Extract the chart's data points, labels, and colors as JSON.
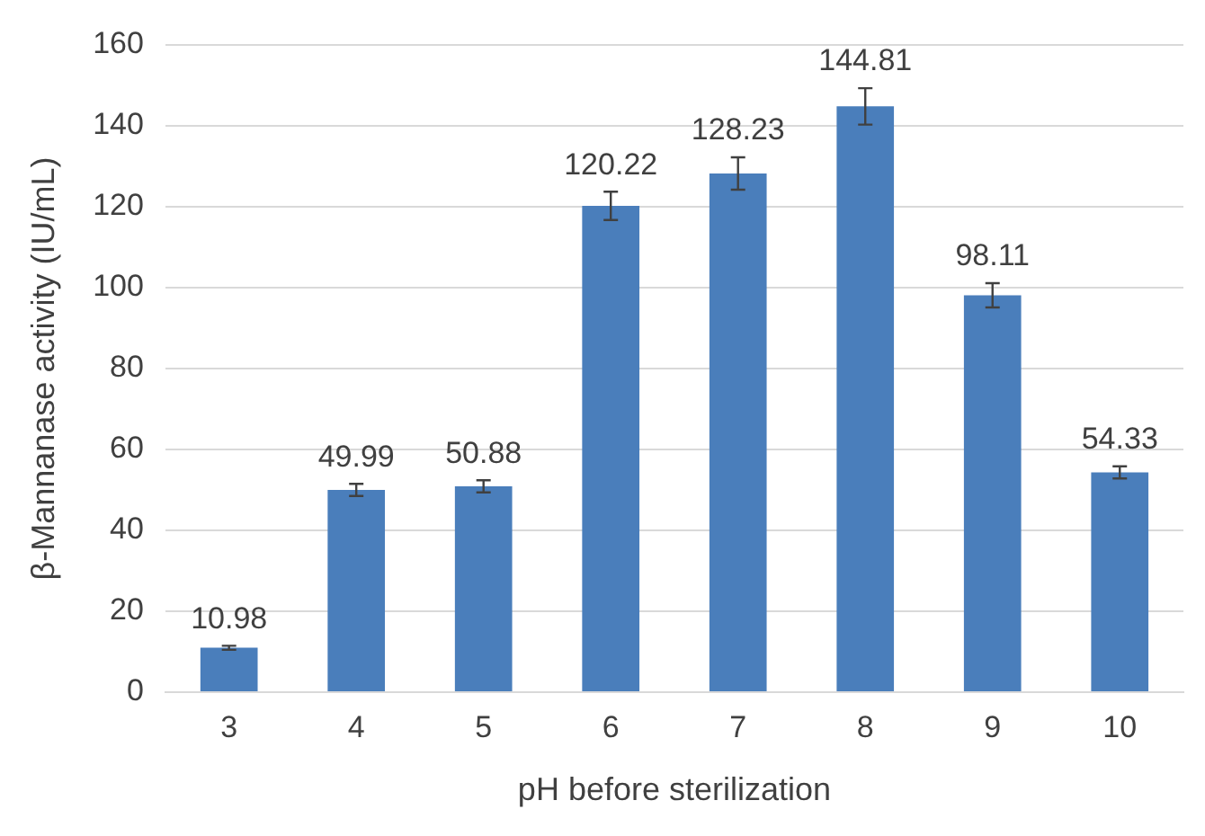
{
  "chart_data": {
    "type": "bar",
    "xlabel": "pH before sterilization",
    "ylabel": "β-Mannanase activity (IU/mL)",
    "categories": [
      "3",
      "4",
      "5",
      "6",
      "7",
      "8",
      "9",
      "10"
    ],
    "values": [
      10.98,
      49.99,
      50.88,
      120.22,
      128.23,
      144.81,
      98.11,
      54.33
    ],
    "errors": [
      0.5,
      1.5,
      1.5,
      3.5,
      4,
      4.5,
      3,
      1.5
    ],
    "color": "#4a7ebb",
    "data_labels": true,
    "ylim": [
      0,
      160
    ],
    "yticks": [
      0,
      20,
      40,
      60,
      80,
      100,
      120,
      140,
      160
    ],
    "grid": "y",
    "legend": false
  }
}
